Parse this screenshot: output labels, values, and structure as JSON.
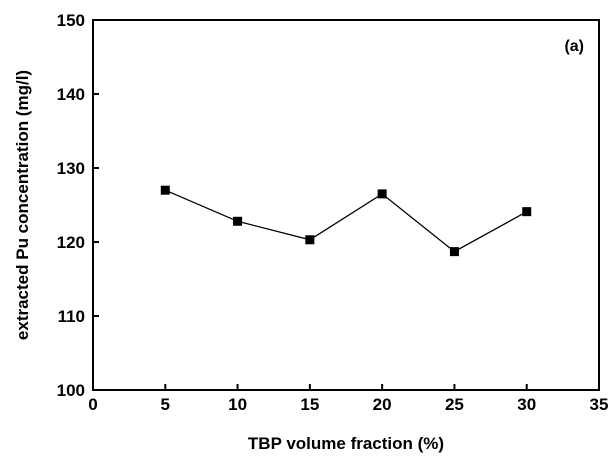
{
  "chart_data": {
    "type": "line",
    "title": "",
    "panel_label": "(a)",
    "xlabel": "TBP volume fraction (%)",
    "ylabel": "extracted Pu concentration (mg/l)",
    "xlim": [
      0,
      35
    ],
    "ylim": [
      100,
      150
    ],
    "x_ticks": [
      0,
      5,
      10,
      15,
      20,
      25,
      30,
      35
    ],
    "y_ticks": [
      100,
      110,
      120,
      130,
      140,
      150
    ],
    "x_tick_labels": [
      "0",
      "5",
      "10",
      "15",
      "20",
      "25",
      "30",
      "35"
    ],
    "y_tick_labels": [
      "100",
      "110",
      "120",
      "130",
      "140",
      "150"
    ],
    "grid": false,
    "legend": "none",
    "marker": "square",
    "series": [
      {
        "x": [
          5,
          10,
          15,
          20,
          25,
          30
        ],
        "values": [
          127.0,
          122.8,
          120.3,
          126.5,
          118.7,
          124.1
        ]
      }
    ],
    "colors": {
      "line": "#000000",
      "marker": "#000000",
      "axis": "#000000"
    }
  }
}
